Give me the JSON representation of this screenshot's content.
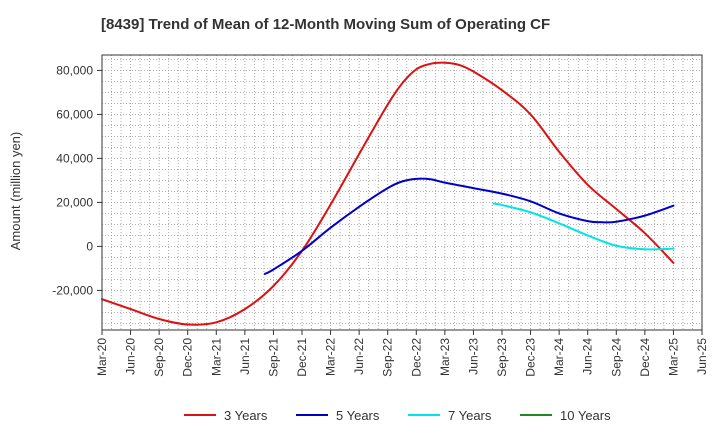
{
  "chart_data": {
    "type": "line",
    "title": "[8439]  Trend of Mean of 12-Month Moving Sum of Operating CF",
    "ylabel": "Amount (million yen)",
    "xlabel": "",
    "x_ticks": [
      "Mar-20",
      "Jun-20",
      "Sep-20",
      "Dec-20",
      "Mar-21",
      "Jun-21",
      "Sep-21",
      "Dec-21",
      "Mar-22",
      "Jun-22",
      "Sep-22",
      "Dec-22",
      "Mar-23",
      "Jun-23",
      "Sep-23",
      "Dec-23",
      "Mar-24",
      "Jun-24",
      "Sep-24",
      "Dec-24",
      "Mar-25",
      "Jun-25"
    ],
    "y_ticks": [
      "80,000",
      "60,000",
      "40,000",
      "20,000",
      "0",
      "-20,000"
    ],
    "y_tick_values": [
      80000,
      60000,
      40000,
      20000,
      0,
      -20000
    ],
    "ylim": [
      -38000,
      87000
    ],
    "grid": true,
    "legend_position": "bottom",
    "series": [
      {
        "name": "3 Years",
        "color": "#dd1111",
        "x": [
          0,
          1,
          2,
          3,
          4,
          5,
          6,
          7,
          8,
          9,
          10,
          10.5,
          11,
          11.5,
          12,
          12.5,
          13,
          14,
          15,
          16,
          17,
          18,
          19,
          20
        ],
        "values": [
          -24000,
          -28500,
          -33000,
          -35500,
          -34500,
          -28500,
          -18000,
          -2000,
          19000,
          42000,
          64500,
          74000,
          80500,
          83000,
          83500,
          82500,
          79500,
          71000,
          60000,
          43000,
          28000,
          17000,
          6000,
          -7500
        ]
      },
      {
        "name": "5 Years",
        "color": "#0000cc",
        "x": [
          5.7,
          6,
          7,
          8,
          9,
          10,
          10.5,
          11,
          11.5,
          12,
          13,
          14,
          15,
          16,
          17,
          17.5,
          18,
          19,
          20
        ],
        "values": [
          -12500,
          -10500,
          -2000,
          8500,
          18000,
          26500,
          29500,
          30700,
          30500,
          29000,
          26500,
          24000,
          20500,
          15000,
          11500,
          11000,
          11200,
          14000,
          18500
        ]
      },
      {
        "name": "7 Years",
        "color": "#00e5e5",
        "x": [
          13.7,
          14,
          15,
          16,
          17,
          18,
          19,
          20
        ],
        "values": [
          19500,
          18800,
          15500,
          10500,
          5000,
          300,
          -1300,
          -1000
        ]
      },
      {
        "name": "10 Years",
        "color": "#228822",
        "x": [],
        "values": []
      }
    ]
  }
}
